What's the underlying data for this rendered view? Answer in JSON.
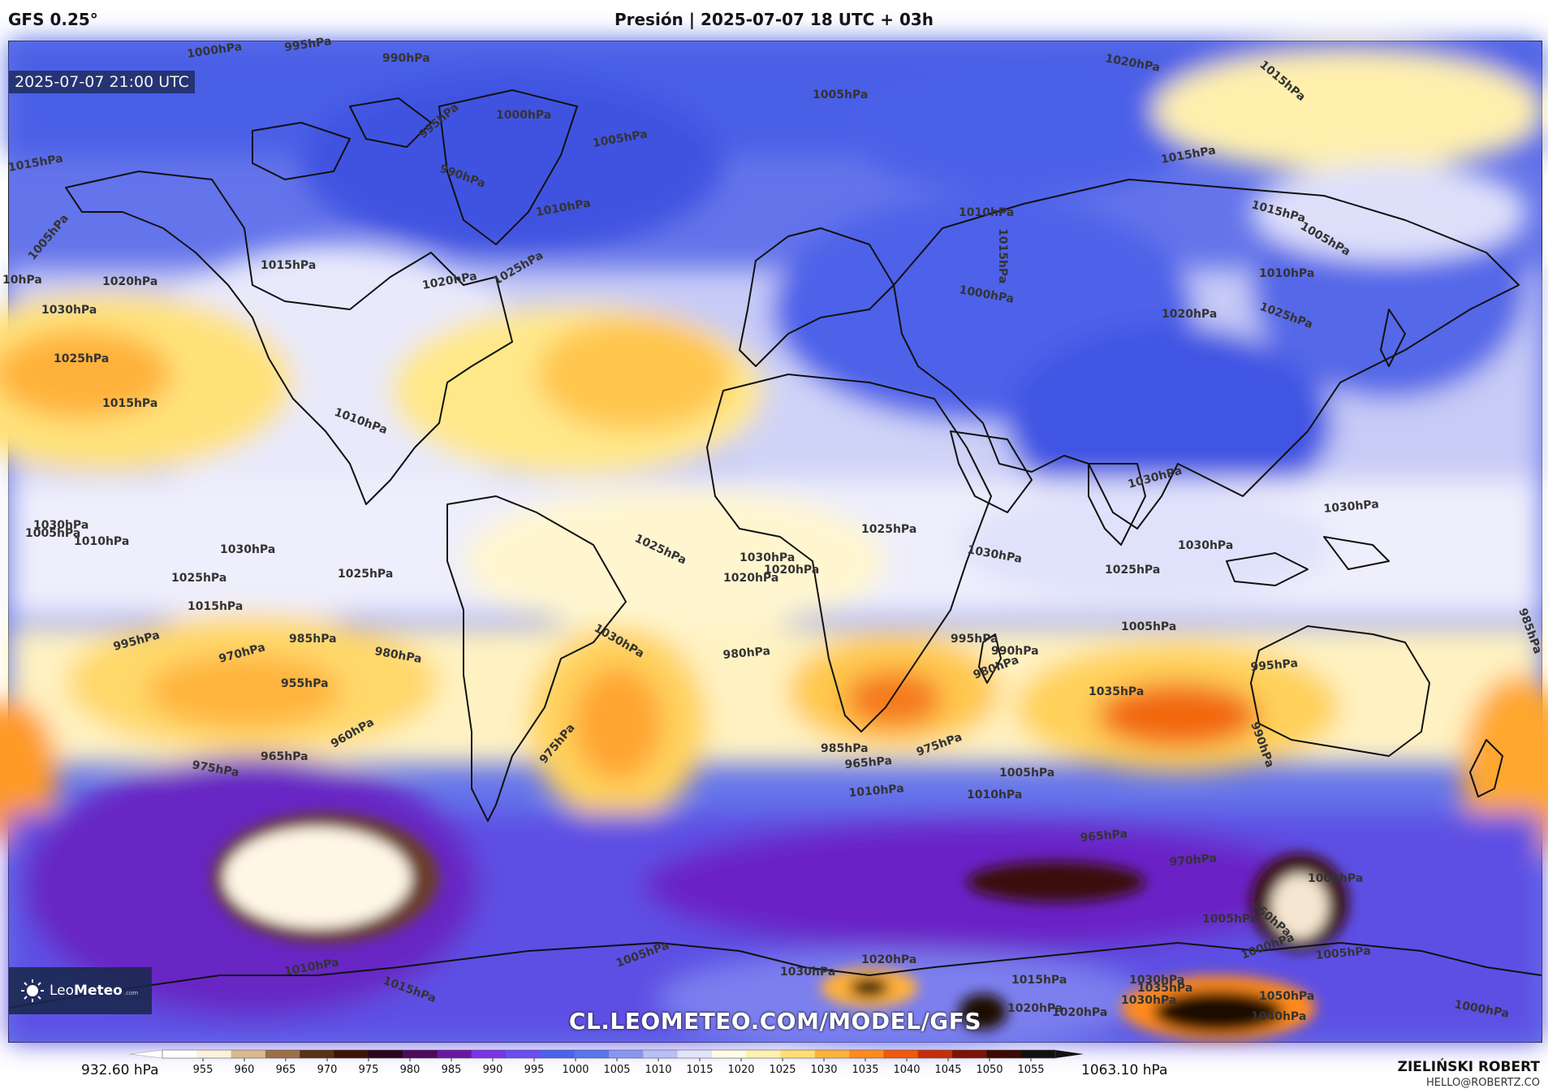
{
  "header": {
    "model": "GFS 0.25°",
    "title": "Presión | 2025-07-07 18 UTC + 03h"
  },
  "map": {
    "valid_time": "2025-07-07 21:00 UTC",
    "website": "CL.LEOMETEO.COM/MODEL/GFS",
    "brand": {
      "name_light": "Leo",
      "name_bold": "Meteo",
      "suffix": ".com"
    },
    "isobar_labels": [
      "1000hPa",
      "995hPa",
      "990hPa",
      "1000hPa",
      "995hPa",
      "990hPa",
      "1005hPa",
      "1010hPa",
      "1015hPa",
      "1005hPa",
      "10hPa",
      "1020hPa",
      "1030hPa",
      "1025hPa",
      "1015hPa",
      "1015hPa",
      "1020hPa",
      "1025hPa",
      "1010hPa",
      "1020hPa",
      "1015hPa",
      "1015hPa",
      "1005hPa",
      "1015hPa",
      "1020hPa",
      "1000hPa",
      "1010hPa",
      "1005hPa",
      "1010hPa",
      "1015hPa",
      "1025hPa",
      "1030hPa",
      "1005hPa",
      "1010hPa",
      "1030hPa",
      "1025hPa",
      "1015hPa",
      "1030hPa",
      "1025hPa",
      "995hPa",
      "970hPa",
      "985hPa",
      "980hPa",
      "955hPa",
      "960hPa",
      "975hPa",
      "965hPa",
      "1025hPa",
      "1030hPa",
      "1020hPa",
      "1025hPa",
      "1030hPa",
      "1035hPa",
      "1030hPa",
      "1025hPa",
      "1020hPa",
      "1030hPa",
      "980hPa",
      "995hPa",
      "990hPa",
      "1005hPa",
      "985hPa",
      "965hPa",
      "970hPa",
      "975hPa",
      "985hPa",
      "965hPa",
      "980hPa",
      "995hPa",
      "1030hPa",
      "1035hPa",
      "1040hPa",
      "1050hPa",
      "1015hPa",
      "1020hPa",
      "1030hPa",
      "1000hPa",
      "1005hPa",
      "1000hPa",
      "1010hPa",
      "1020hPa",
      "1000hPa",
      "1005hPa",
      "960hPa",
      "990hPa",
      "1010hPa",
      "1015hPa",
      "1005hPa",
      "1030hPa",
      "1020hPa",
      "975hPa",
      "1030hPa",
      "1005hPa",
      "1010hPa"
    ]
  },
  "colorbar": {
    "min_label": "932.60 hPa",
    "max_label": "1063.10 hPa",
    "ticks": [
      "955",
      "960",
      "965",
      "970",
      "975",
      "980",
      "985",
      "990",
      "995",
      "1000",
      "1005",
      "1010",
      "1015",
      "1020",
      "1025",
      "1030",
      "1035",
      "1040",
      "1045",
      "1050",
      "1055"
    ],
    "colors": [
      "#ffffff",
      "#fbf1dc",
      "#d9b98d",
      "#9c6f47",
      "#5a3219",
      "#3b1506",
      "#2a0620",
      "#4d0b5c",
      "#6a16a3",
      "#7b33e8",
      "#6a4cf0",
      "#4c61ee",
      "#5a74ee",
      "#8a95f2",
      "#b9bff7",
      "#e2e4fb",
      "#fffbe6",
      "#fff1b0",
      "#ffdf72",
      "#ffb23a",
      "#ff8a1c",
      "#f0580c",
      "#c52e08",
      "#7d1404",
      "#3c0a02",
      "#111111"
    ]
  },
  "footer": {
    "author": "ZIELIŃSKI ROBERT",
    "email": "HELLO@ROBERTZ.CO"
  },
  "colors": {
    "low_pressure": "#5466e6",
    "deep_low": "#6a1cc8",
    "high_pressure": "#ffd75a",
    "very_high": "#f07512",
    "extreme": "#1a0803",
    "coastline": "#111111"
  }
}
